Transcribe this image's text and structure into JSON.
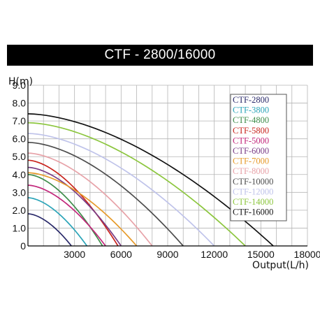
{
  "header": {
    "title": "CTF - 2800/16000"
  },
  "chart_data": {
    "type": "line",
    "title": "CTF - 2800/16000",
    "ylabel": "H(m)",
    "xlabel": "Output(L/h)",
    "xlim": [
      0,
      18000
    ],
    "ylim": [
      0,
      9
    ],
    "xticks": [
      "3000",
      "6000",
      "9000",
      "12000",
      "15000",
      "18000"
    ],
    "yticks": [
      "0",
      "1.0",
      "2.0",
      "3.0",
      "4.0",
      "5.0",
      "6.0",
      "7.0",
      "8.0",
      "9.0"
    ],
    "grid": true,
    "legend": "top-right",
    "series": [
      {
        "name": "CTF-2800",
        "color": "#2a2a6a",
        "max_head": 1.8,
        "max_flow": 2800
      },
      {
        "name": "CTF-3800",
        "color": "#2ba4b8",
        "max_head": 2.7,
        "max_flow": 3800
      },
      {
        "name": "CTF-4800",
        "color": "#3e8c4a",
        "max_head": 4.0,
        "max_flow": 4800
      },
      {
        "name": "CTF-5800",
        "color": "#c8241e",
        "max_head": 4.8,
        "max_flow": 5800
      },
      {
        "name": "CTF-5000",
        "color": "#c2267a",
        "max_head": 3.4,
        "max_flow": 5000
      },
      {
        "name": "CTF-6000",
        "color": "#7a3c86",
        "max_head": 4.4,
        "max_flow": 6000
      },
      {
        "name": "CTF-7000",
        "color": "#e69a2a",
        "max_head": 4.1,
        "max_flow": 7000
      },
      {
        "name": "CTF-8000",
        "color": "#e7a2a8",
        "max_head": 5.2,
        "max_flow": 8000
      },
      {
        "name": "CTF-10000",
        "color": "#4d4d4d",
        "max_head": 5.8,
        "max_flow": 10000
      },
      {
        "name": "CTF-12000",
        "color": "#bfc3ea",
        "max_head": 6.3,
        "max_flow": 12000
      },
      {
        "name": "CTF-14000",
        "color": "#8cc63e",
        "max_head": 6.9,
        "max_flow": 14000
      },
      {
        "name": "CTF-16000",
        "color": "#111111",
        "max_head": 7.4,
        "max_flow": 15800
      }
    ]
  }
}
